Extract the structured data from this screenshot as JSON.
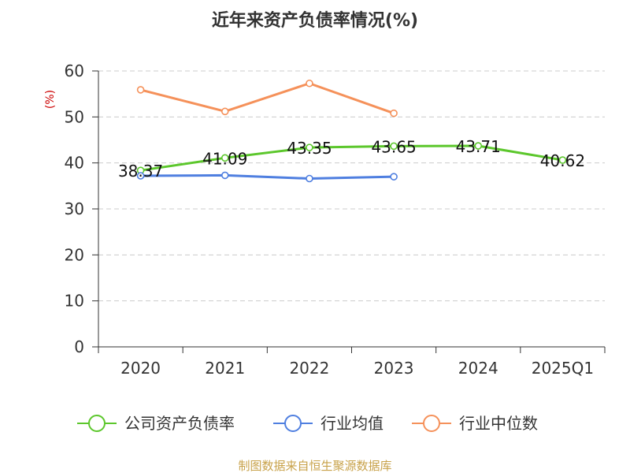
{
  "chart_data": {
    "type": "line",
    "title": "近年来资产负债率情况(%)",
    "ylabel": "(%)",
    "xlabel": "",
    "categories": [
      "2020",
      "2021",
      "2022",
      "2023",
      "2024",
      "2025Q1"
    ],
    "ylim": [
      0,
      60
    ],
    "yticks": [
      0,
      10,
      20,
      30,
      40,
      50,
      60
    ],
    "grid": true,
    "legend_position": "bottom",
    "series": [
      {
        "name": "公司资产负债率",
        "color": "#5cc72c",
        "values": [
          38.37,
          41.09,
          43.35,
          43.65,
          43.71,
          40.62
        ],
        "labels": [
          "38.37",
          "41.09",
          "43.35",
          "43.65",
          "43.71",
          "40.62"
        ]
      },
      {
        "name": "行业均值",
        "color": "#4f7fe0",
        "values": [
          37.2,
          37.3,
          36.6,
          37.0,
          null,
          null
        ]
      },
      {
        "name": "行业中位数",
        "color": "#f5915a",
        "values": [
          55.9,
          51.2,
          57.3,
          50.8,
          null,
          null
        ]
      }
    ],
    "source": "制图数据来自恒生聚源数据库",
    "colors": {
      "source": "#c8a24a",
      "unit": "#cc0000",
      "grid": "#cccccc",
      "axis": "#333333"
    }
  }
}
